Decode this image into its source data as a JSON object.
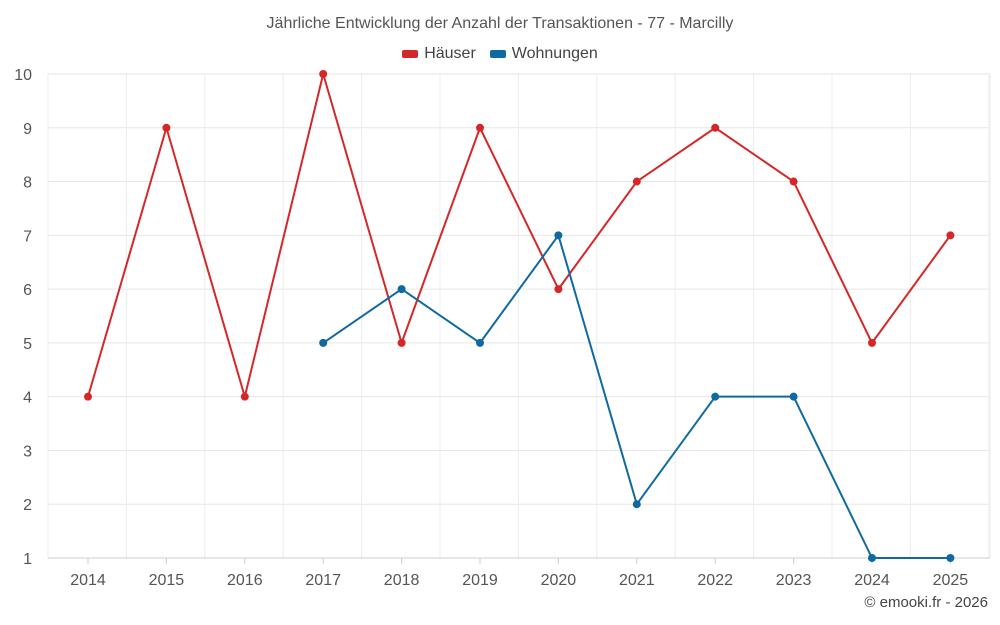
{
  "chart_data": {
    "type": "line",
    "title": "Jährliche Entwicklung der Anzahl der Transaktionen - 77 - Marcilly",
    "xlabel": "",
    "ylabel": "",
    "categories": [
      "2014",
      "2015",
      "2016",
      "2017",
      "2018",
      "2019",
      "2020",
      "2021",
      "2022",
      "2023",
      "2024",
      "2025"
    ],
    "ylim": [
      1,
      10
    ],
    "yticks": [
      "1",
      "2",
      "3",
      "4",
      "5",
      "6",
      "7",
      "8",
      "9",
      "10"
    ],
    "grid": true,
    "legend_position": "top-center",
    "series": [
      {
        "name": "Häuser",
        "color": "#d62728",
        "values": [
          4,
          9,
          4,
          10,
          5,
          9,
          6,
          8,
          9,
          8,
          5,
          7
        ]
      },
      {
        "name": "Wohnungen",
        "color": "#0f6aa1",
        "values": [
          null,
          null,
          null,
          5,
          6,
          5,
          7,
          2,
          4,
          4,
          1,
          1
        ]
      }
    ]
  },
  "footer": {
    "copyright": "© emooki.fr - 2026"
  }
}
